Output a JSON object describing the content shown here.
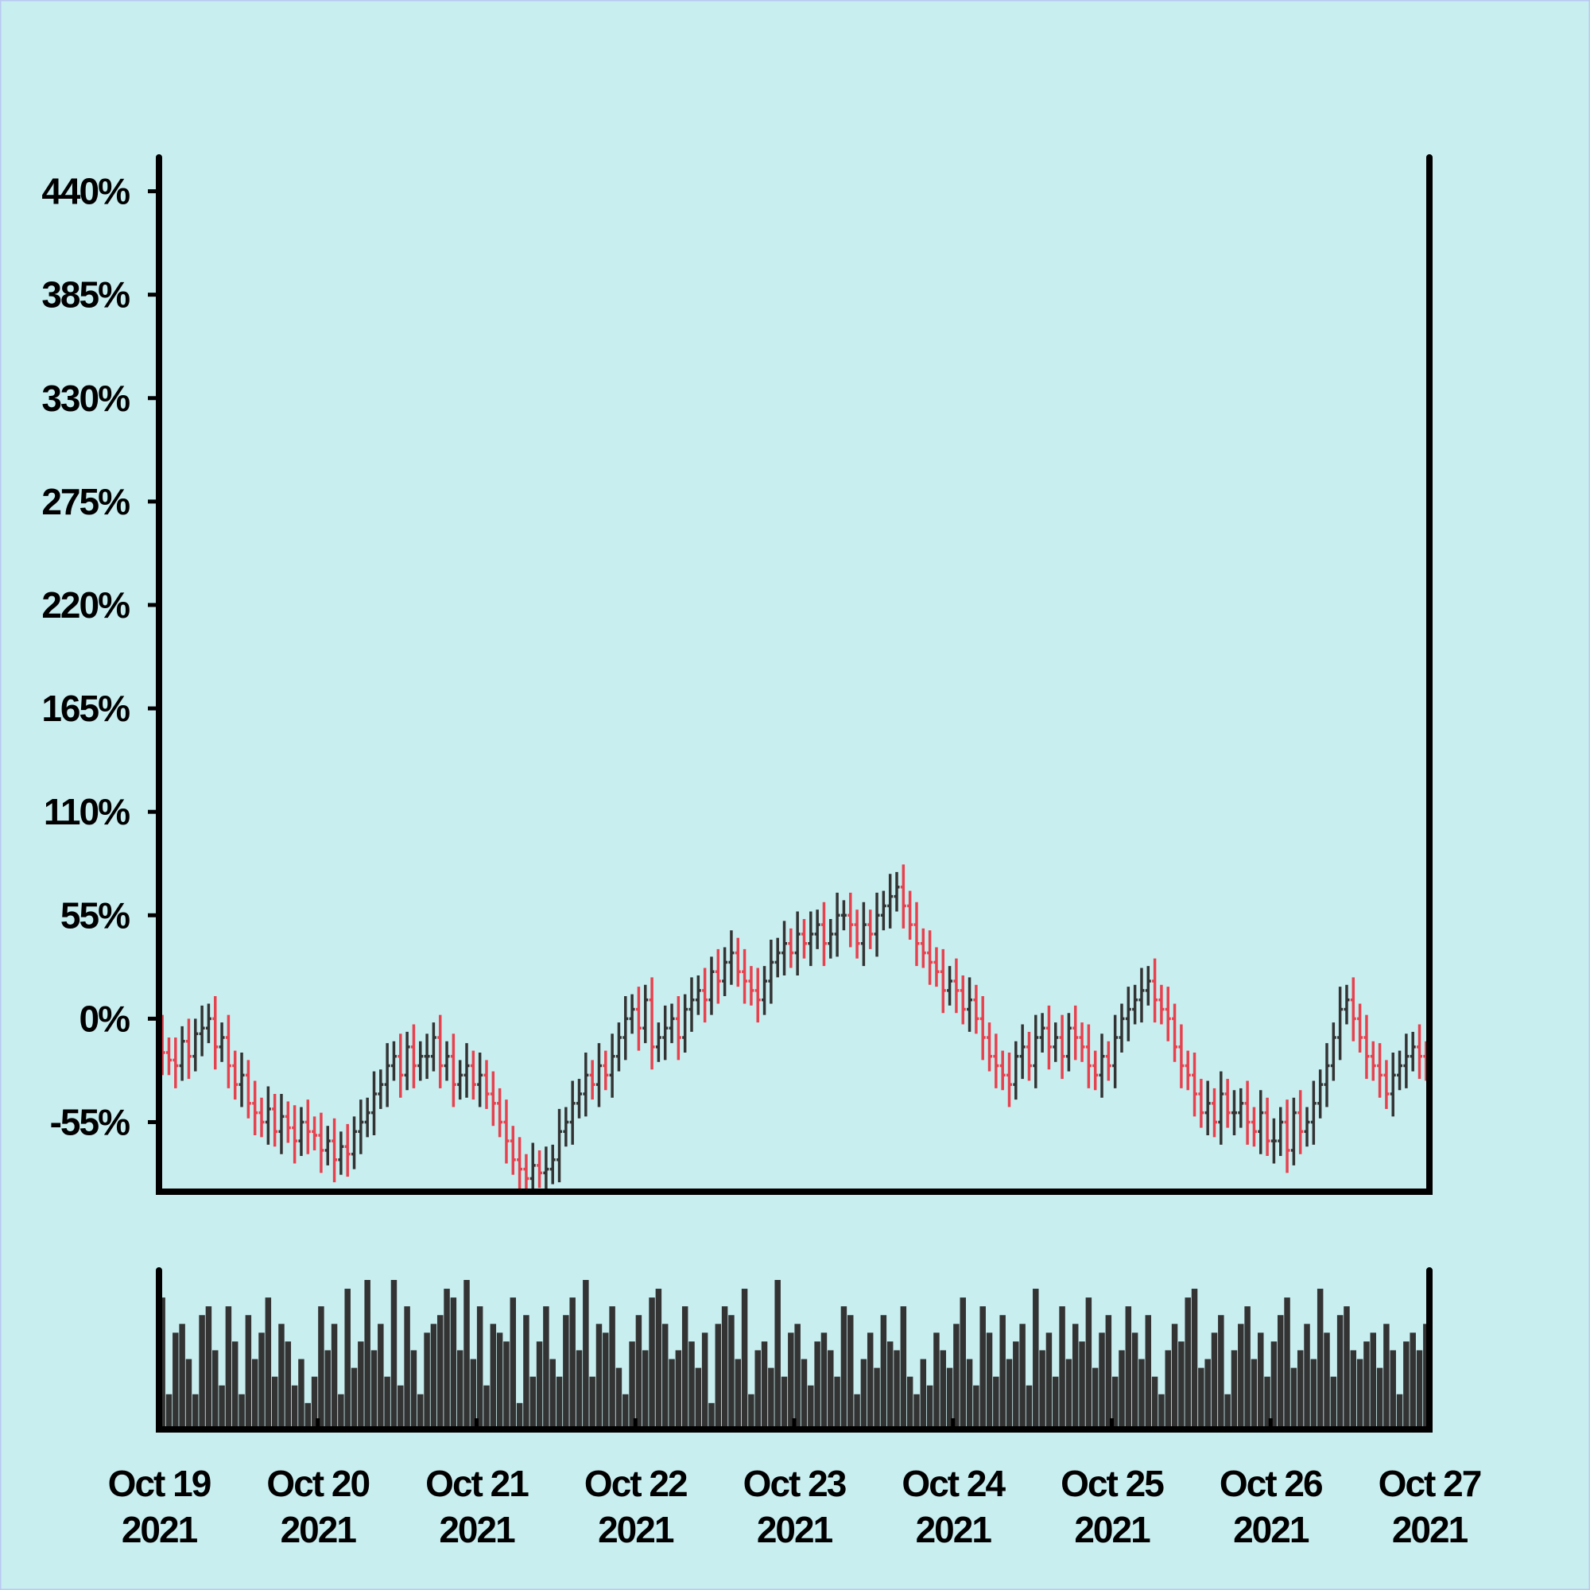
{
  "chart_data": {
    "type": "ohlc",
    "xlim": [
      0,
      8
    ],
    "xticks": [
      {
        "value": 0,
        "label": "Oct 19 2021"
      },
      {
        "value": 1,
        "label": "Oct 20 2021"
      },
      {
        "value": 2,
        "label": "Oct 21 2021"
      },
      {
        "value": 3,
        "label": "Oct 22 2021"
      },
      {
        "value": 4,
        "label": "Oct 23 2021"
      },
      {
        "value": 5,
        "label": "Oct 24 2021"
      },
      {
        "value": 6,
        "label": "Oct 25 2021"
      },
      {
        "value": 7,
        "label": "Oct 26 2021"
      },
      {
        "value": 8,
        "label": "Oct 27 2021"
      }
    ],
    "ylim": [
      -92,
      458
    ],
    "yticks": [
      {
        "value": -55,
        "label": "-55%"
      },
      {
        "value": 0,
        "label": "0%"
      },
      {
        "value": 55,
        "label": "55%"
      },
      {
        "value": 110,
        "label": "110%"
      },
      {
        "value": 165,
        "label": "165%"
      },
      {
        "value": 220,
        "label": "220%"
      },
      {
        "value": 275,
        "label": "275%"
      },
      {
        "value": 330,
        "label": "330%"
      },
      {
        "value": 385,
        "label": "385%"
      },
      {
        "value": 440,
        "label": "440%"
      }
    ],
    "up_color": "#333333",
    "down_color": "#e8414e",
    "volume_color": "#333333",
    "open": [
      -10,
      -18,
      -22,
      -25,
      -12,
      -20,
      -8,
      -5,
      0,
      -15,
      -10,
      -25,
      -35,
      -30,
      -45,
      -50,
      -55,
      -48,
      -60,
      -52,
      -58,
      -65,
      -55,
      -60,
      -62,
      -70,
      -65,
      -75,
      -68,
      -72,
      -60,
      -55,
      -50,
      -40,
      -35,
      -25,
      -20,
      -30,
      -15,
      -25,
      -20,
      -20,
      -10,
      -25,
      -20,
      -35,
      -30,
      -25,
      -35,
      -30,
      -40,
      -45,
      -55,
      -65,
      -75,
      -80,
      -85,
      -78,
      -82,
      -80,
      -75,
      -60,
      -55,
      -45,
      -40,
      -30,
      -35,
      -25,
      -30,
      -20,
      -10,
      0,
      5,
      -5,
      10,
      -15,
      -10,
      -5,
      0,
      -10,
      5,
      10,
      15,
      10,
      25,
      20,
      30,
      35,
      25,
      20,
      15,
      10,
      20,
      30,
      35,
      40,
      35,
      45,
      40,
      45,
      50,
      40,
      45,
      55,
      55,
      50,
      40,
      50,
      45,
      55,
      60,
      65,
      70,
      60,
      50,
      40,
      35,
      30,
      25,
      15,
      20,
      15,
      5,
      10,
      0,
      -10,
      -20,
      -25,
      -30,
      -35,
      -20,
      -15,
      -25,
      -10,
      -5,
      -15,
      -10,
      -20,
      -5,
      -10,
      -15,
      -25,
      -30,
      -20,
      -25,
      -10,
      0,
      5,
      10,
      15,
      20,
      10,
      5,
      0,
      -15,
      -25,
      -30,
      -40,
      -50,
      -45,
      -55,
      -40,
      -50,
      -50,
      -45,
      -55,
      -60,
      -50,
      -65,
      -65,
      -55,
      -70,
      -50,
      -60,
      -55,
      -45,
      -35,
      -25,
      -10,
      5,
      10,
      0,
      -10,
      -20,
      -25,
      -30,
      -40,
      -30,
      -25,
      -20,
      -15,
      -20
    ],
    "high": [
      2,
      -10,
      -10,
      -4,
      0,
      0,
      7,
      8,
      12,
      -2,
      2,
      -17,
      -18,
      -22,
      -33,
      -42,
      -36,
      -40,
      -40,
      -44,
      -46,
      -47,
      -43,
      -52,
      -50,
      -57,
      -53,
      -60,
      -56,
      -52,
      -43,
      -42,
      -28,
      -27,
      -13,
      -12,
      -8,
      -7,
      -3,
      -12,
      -8,
      -2,
      2,
      -12,
      -8,
      -22,
      -13,
      -17,
      -18,
      -22,
      -28,
      -37,
      -43,
      -57,
      -63,
      -72,
      -66,
      -70,
      -68,
      -67,
      -48,
      -47,
      -33,
      -32,
      -18,
      -22,
      -13,
      -17,
      -8,
      -2,
      12,
      13,
      17,
      18,
      22,
      -2,
      7,
      8,
      12,
      13,
      22,
      23,
      27,
      33,
      37,
      38,
      47,
      43,
      37,
      28,
      27,
      28,
      42,
      43,
      52,
      48,
      57,
      53,
      57,
      58,
      62,
      53,
      67,
      63,
      67,
      58,
      62,
      58,
      67,
      68,
      77,
      78,
      82,
      68,
      62,
      48,
      47,
      38,
      37,
      28,
      32,
      23,
      22,
      18,
      12,
      -2,
      -8,
      -17,
      -18,
      -12,
      -3,
      -7,
      2,
      3,
      7,
      -2,
      2,
      3,
      7,
      -2,
      -3,
      -17,
      -8,
      -12,
      2,
      8,
      17,
      18,
      27,
      28,
      32,
      18,
      17,
      8,
      -3,
      -17,
      -18,
      -32,
      -33,
      -37,
      -28,
      -32,
      -38,
      -37,
      -33,
      -47,
      -38,
      -42,
      -53,
      -47,
      -43,
      -42,
      -38,
      -47,
      -33,
      -27,
      -13,
      -2,
      17,
      18,
      22,
      8,
      2,
      -12,
      -13,
      -22,
      -18,
      -17,
      -8,
      -7,
      -3,
      -12
    ],
    "low": [
      -30,
      -30,
      -37,
      -33,
      -32,
      -28,
      -20,
      -13,
      -27,
      -23,
      -37,
      -43,
      -47,
      -53,
      -62,
      -63,
      -67,
      -68,
      -72,
      -66,
      -77,
      -73,
      -72,
      -70,
      -82,
      -78,
      -87,
      -83,
      -84,
      -80,
      -72,
      -63,
      -62,
      -48,
      -47,
      -33,
      -42,
      -38,
      -37,
      -33,
      -32,
      -28,
      -37,
      -33,
      -47,
      -43,
      -42,
      -43,
      -47,
      -48,
      -57,
      -63,
      -77,
      -83,
      -92,
      -93,
      -97,
      -90,
      -94,
      -88,
      -87,
      -68,
      -67,
      -53,
      -52,
      -43,
      -47,
      -38,
      -42,
      -28,
      -22,
      -8,
      -17,
      -13,
      -27,
      -23,
      -22,
      -13,
      -22,
      -18,
      -7,
      2,
      -2,
      2,
      8,
      12,
      18,
      17,
      8,
      7,
      -2,
      2,
      8,
      22,
      23,
      27,
      23,
      32,
      28,
      37,
      28,
      32,
      33,
      47,
      38,
      32,
      28,
      37,
      33,
      47,
      48,
      57,
      48,
      42,
      28,
      27,
      18,
      17,
      3,
      7,
      3,
      -3,
      -7,
      -8,
      -22,
      -28,
      -37,
      -38,
      -47,
      -43,
      -32,
      -33,
      -37,
      -18,
      -27,
      -23,
      -32,
      -28,
      -22,
      -23,
      -37,
      -38,
      -42,
      -33,
      -37,
      -18,
      -12,
      -3,
      -2,
      7,
      -2,
      -3,
      -12,
      -23,
      -37,
      -38,
      -52,
      -58,
      -62,
      -63,
      -67,
      -58,
      -62,
      -58,
      -67,
      -68,
      -72,
      -73,
      -77,
      -73,
      -82,
      -78,
      -72,
      -68,
      -67,
      -53,
      -47,
      -33,
      -22,
      -3,
      -12,
      -18,
      -32,
      -33,
      -42,
      -48,
      -52,
      -38,
      -37,
      -28,
      -32,
      -33
    ],
    "close": [
      -18,
      -22,
      -25,
      -12,
      -20,
      -8,
      -5,
      0,
      -15,
      -10,
      -25,
      -35,
      -30,
      -45,
      -50,
      -55,
      -48,
      -60,
      -52,
      -58,
      -65,
      -55,
      -60,
      -62,
      -70,
      -65,
      -75,
      -68,
      -72,
      -60,
      -55,
      -50,
      -40,
      -35,
      -25,
      -20,
      -30,
      -15,
      -25,
      -20,
      -20,
      -10,
      -25,
      -20,
      -35,
      -30,
      -25,
      -35,
      -30,
      -40,
      -45,
      -55,
      -65,
      -75,
      -80,
      -85,
      -78,
      -82,
      -80,
      -75,
      -60,
      -55,
      -45,
      -40,
      -30,
      -35,
      -25,
      -30,
      -20,
      -10,
      0,
      5,
      -5,
      10,
      -15,
      -10,
      -5,
      0,
      -10,
      5,
      10,
      15,
      10,
      25,
      20,
      30,
      35,
      25,
      20,
      15,
      10,
      20,
      30,
      35,
      40,
      35,
      45,
      40,
      45,
      50,
      40,
      45,
      55,
      55,
      50,
      40,
      50,
      45,
      55,
      60,
      65,
      70,
      60,
      50,
      40,
      35,
      30,
      25,
      15,
      20,
      15,
      5,
      10,
      0,
      -10,
      -20,
      -25,
      -30,
      -35,
      -20,
      -15,
      -25,
      -10,
      -5,
      -15,
      -10,
      -20,
      -5,
      -10,
      -15,
      -25,
      -30,
      -20,
      -25,
      -10,
      0,
      5,
      10,
      15,
      20,
      10,
      5,
      0,
      -15,
      -25,
      -30,
      -40,
      -50,
      -45,
      -55,
      -40,
      -50,
      -50,
      -45,
      -55,
      -60,
      -50,
      -65,
      -65,
      -55,
      -70,
      -50,
      -60,
      -55,
      -45,
      -35,
      -25,
      -10,
      5,
      10,
      0,
      -10,
      -20,
      -25,
      -30,
      -40,
      -30,
      -25,
      -20,
      -15,
      -20,
      -25
    ],
    "volume": [
      75,
      20,
      55,
      60,
      40,
      20,
      65,
      70,
      45,
      25,
      70,
      50,
      20,
      65,
      40,
      55,
      75,
      30,
      60,
      50,
      25,
      40,
      15,
      30,
      70,
      45,
      60,
      20,
      80,
      35,
      50,
      85,
      45,
      60,
      30,
      85,
      25,
      70,
      45,
      20,
      55,
      60,
      65,
      80,
      75,
      45,
      85,
      40,
      70,
      25,
      60,
      55,
      50,
      75,
      15,
      65,
      30,
      50,
      70,
      40,
      30,
      65,
      75,
      45,
      85,
      30,
      60,
      55,
      70,
      35,
      20,
      50,
      65,
      45,
      75,
      80,
      60,
      40,
      45,
      70,
      50,
      35,
      55,
      15,
      60,
      70,
      65,
      40,
      80,
      20,
      45,
      50,
      35,
      85,
      30,
      55,
      60,
      40,
      25,
      50,
      55,
      45,
      30,
      70,
      65,
      20,
      40,
      55,
      35,
      65,
      50,
      45,
      70,
      30,
      20,
      40,
      25,
      55,
      45,
      35,
      60,
      75,
      40,
      25,
      70,
      55,
      30,
      65,
      40,
      50,
      60,
      25,
      80,
      45,
      55,
      30,
      70,
      40,
      60,
      50,
      75,
      35,
      55,
      65,
      30,
      45,
      70,
      55,
      40,
      65,
      30,
      20,
      45,
      60,
      50,
      75,
      80,
      35,
      40,
      55,
      65,
      20,
      45,
      60,
      70,
      40,
      55,
      30,
      50,
      65,
      75,
      35,
      45,
      60,
      40,
      80,
      55,
      30,
      65,
      70,
      45,
      40,
      50,
      55,
      35,
      60,
      45,
      20,
      50,
      55,
      45,
      60
    ]
  }
}
